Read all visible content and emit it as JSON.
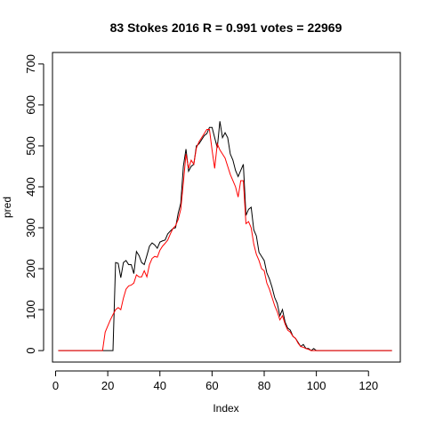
{
  "chart_data": {
    "type": "line",
    "title": "83 Stokes 2016 R = 0.991 votes = 22969",
    "xlabel": "Index",
    "ylabel": "pred",
    "xlim": [
      -1.2,
      132.2
    ],
    "ylim": [
      -28,
      728
    ],
    "x_ticks": [
      0,
      20,
      40,
      60,
      80,
      100,
      120
    ],
    "y_ticks": [
      0,
      100,
      200,
      300,
      400,
      500,
      600,
      700
    ],
    "grid": false,
    "legend": "none",
    "series": [
      {
        "color": "#000000",
        "values": [
          0,
          0,
          0,
          0,
          0,
          0,
          0,
          0,
          0,
          0,
          0,
          0,
          0,
          0,
          0,
          0,
          0,
          0,
          0,
          0,
          0,
          0,
          215,
          213,
          178,
          215,
          220,
          210,
          210,
          188,
          242,
          232,
          215,
          210,
          232,
          255,
          263,
          258,
          250,
          265,
          268,
          270,
          285,
          292,
          298,
          300,
          335,
          360,
          450,
          492,
          438,
          450,
          455,
          500,
          505,
          515,
          525,
          530,
          545,
          545,
          520,
          495,
          560,
          520,
          532,
          520,
          480,
          465,
          440,
          425,
          440,
          455,
          330,
          345,
          350,
          295,
          280,
          240,
          230,
          220,
          190,
          175,
          155,
          130,
          115,
          85,
          100,
          70,
          55,
          50,
          35,
          30,
          20,
          10,
          15,
          5,
          5,
          0,
          5,
          0,
          0,
          0,
          0,
          0,
          0,
          0,
          0,
          0,
          0,
          0,
          0,
          0,
          0,
          0,
          0,
          0,
          0,
          0,
          0,
          0,
          0,
          0,
          0,
          0,
          0,
          0,
          0,
          0,
          0
        ]
      },
      {
        "color": "#ff0000",
        "values": [
          0,
          0,
          0,
          0,
          0,
          0,
          0,
          0,
          0,
          0,
          0,
          0,
          0,
          0,
          0,
          0,
          0,
          0,
          45,
          60,
          75,
          88,
          100,
          105,
          100,
          128,
          150,
          158,
          160,
          165,
          185,
          180,
          180,
          195,
          180,
          210,
          225,
          230,
          228,
          245,
          255,
          262,
          270,
          285,
          298,
          305,
          320,
          345,
          410,
          480,
          445,
          465,
          455,
          495,
          510,
          520,
          530,
          540,
          540,
          490,
          445,
          505,
          490,
          480,
          470,
          450,
          430,
          415,
          400,
          375,
          415,
          415,
          310,
          315,
          300,
          260,
          235,
          220,
          200,
          195,
          165,
          150,
          130,
          110,
          95,
          75,
          85,
          65,
          50,
          45,
          35,
          30,
          18,
          10,
          8,
          5,
          3,
          0,
          0,
          0,
          0,
          0,
          0,
          0,
          0,
          0,
          0,
          0,
          0,
          0,
          0,
          0,
          0,
          0,
          0,
          0,
          0,
          0,
          0,
          0,
          0,
          0,
          0,
          0,
          0,
          0,
          0,
          0,
          0
        ]
      }
    ]
  }
}
